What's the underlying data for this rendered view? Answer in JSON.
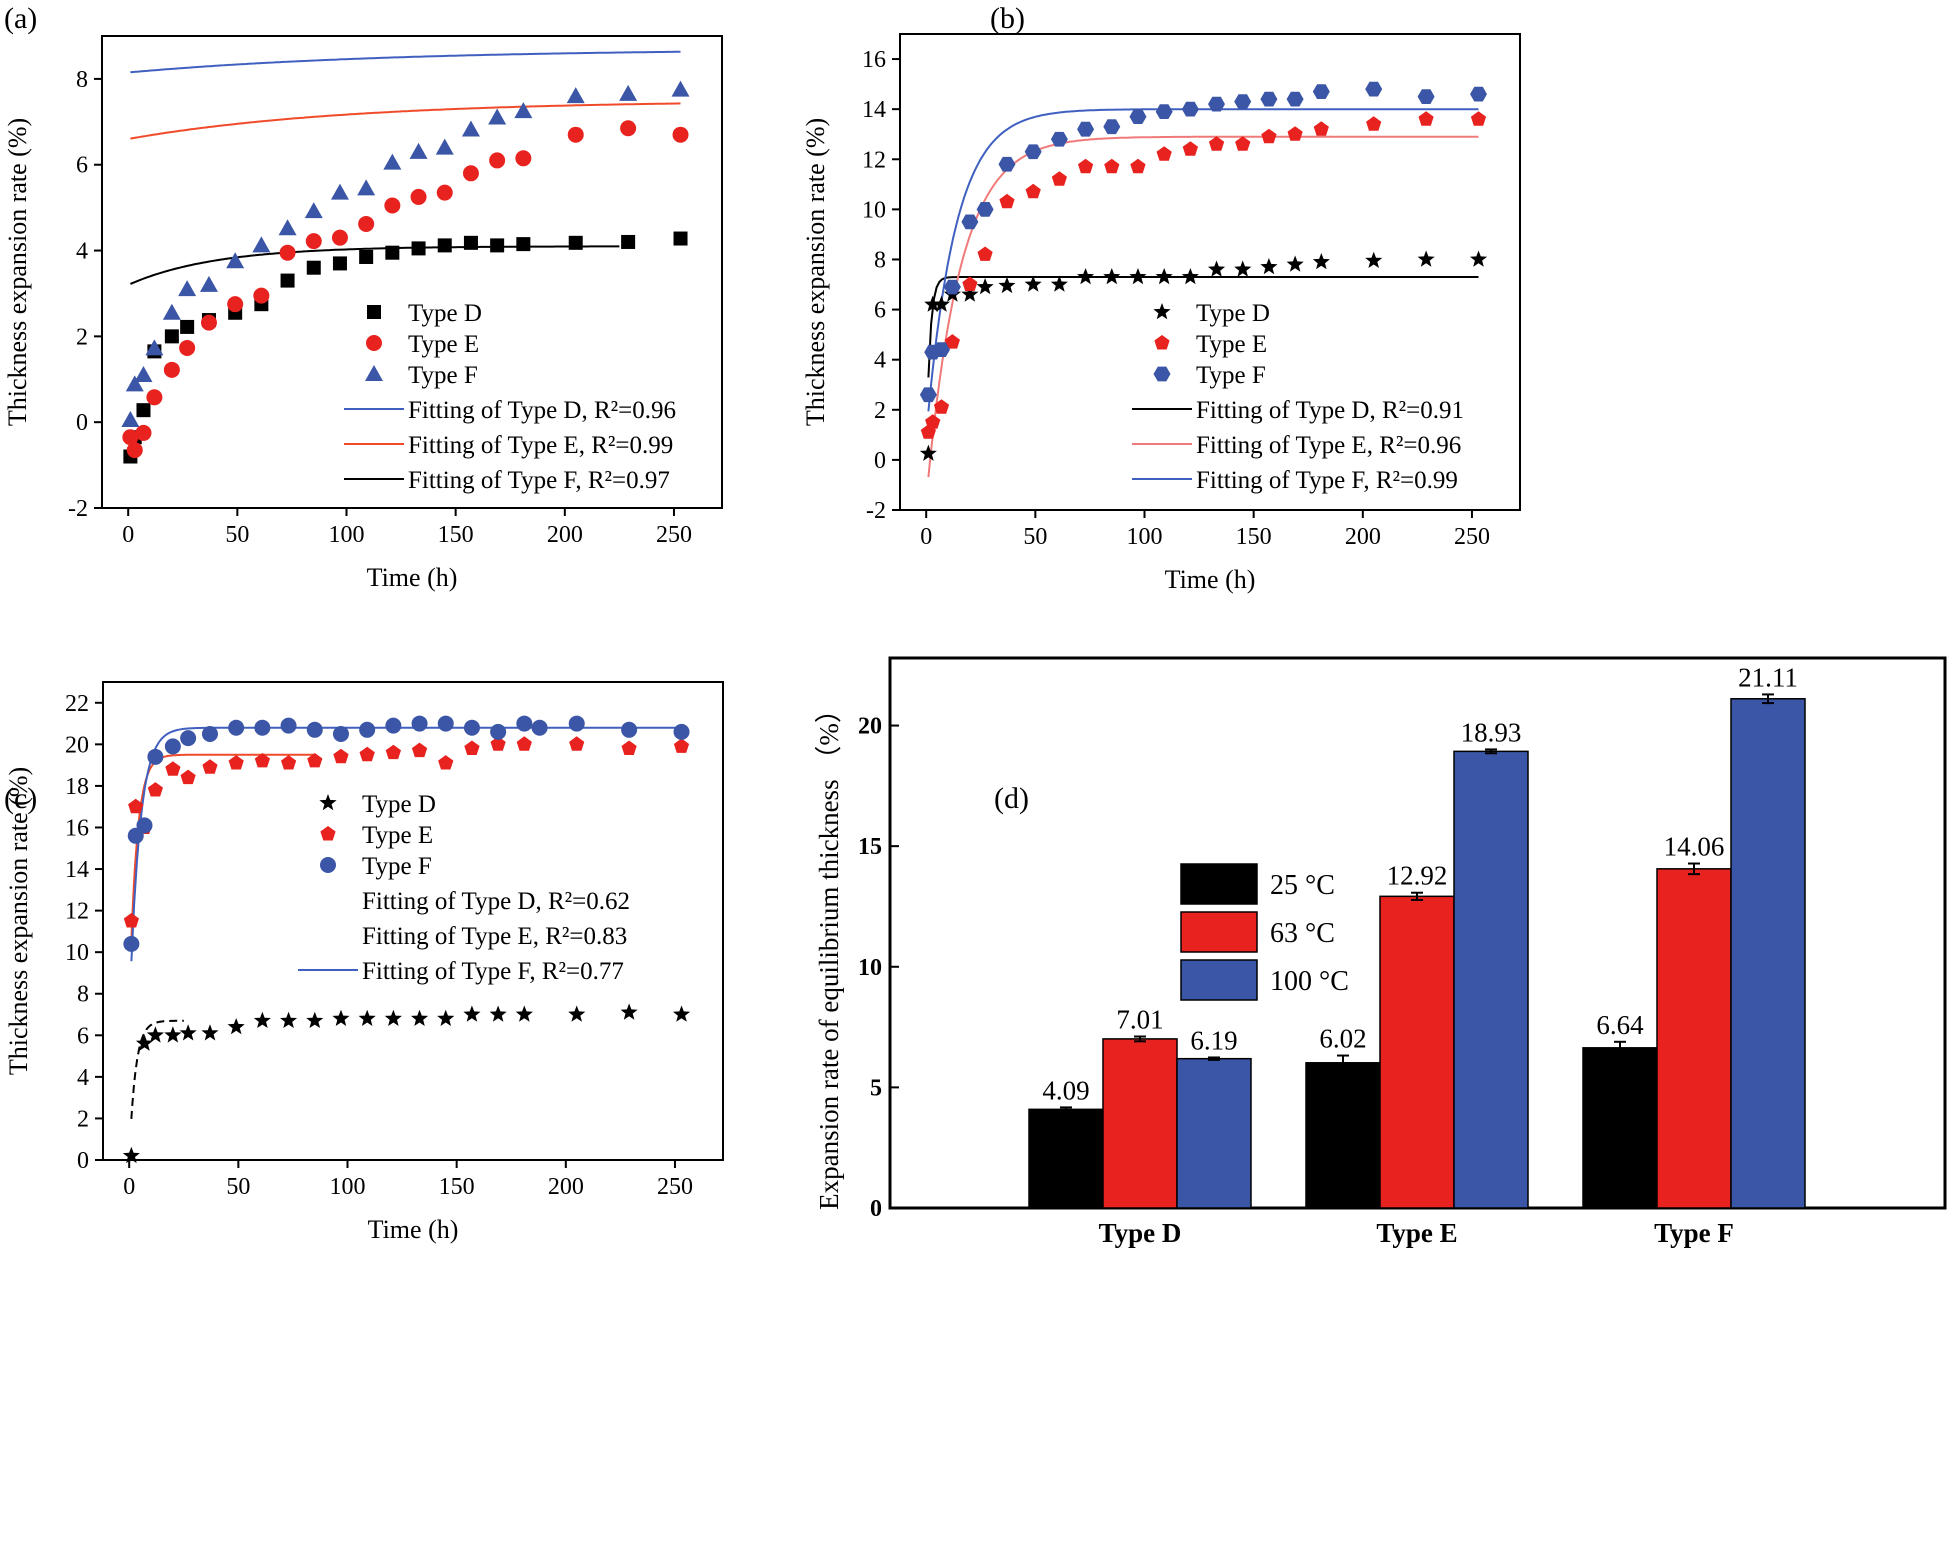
{
  "figure": {
    "panel_labels": [
      "(a)",
      "(b)",
      "(c)",
      "(d)"
    ]
  },
  "colors": {
    "black": "#000000",
    "red": "#e8221e",
    "blue": "#3b56a6",
    "fit_red": "#f04a2a",
    "fit_blue": "#4060c0"
  },
  "chart_data": [
    {
      "panel": "a",
      "type": "scatter",
      "xlabel": "Time (h)",
      "ylabel": "Thickness expansion rate (%)",
      "xlim": [
        -12,
        272
      ],
      "ylim": [
        -2,
        9
      ],
      "xticks": [
        0,
        50,
        100,
        150,
        200,
        250
      ],
      "yticks": [
        -2,
        0,
        2,
        4,
        6,
        8
      ],
      "series": [
        {
          "name": "Type D",
          "marker": "square",
          "color": "#000000",
          "x": [
            1,
            3,
            7,
            12,
            20,
            27,
            37,
            49,
            61,
            73,
            85,
            97,
            109,
            121,
            133,
            145,
            157,
            169,
            181,
            205,
            229,
            253
          ],
          "y": [
            -0.8,
            -0.35,
            0.28,
            1.65,
            2.0,
            2.22,
            2.38,
            2.55,
            2.75,
            3.3,
            3.6,
            3.7,
            3.85,
            3.95,
            4.05,
            4.12,
            4.18,
            4.12,
            4.15,
            4.18,
            4.2,
            4.28
          ]
        },
        {
          "name": "Type E",
          "marker": "circle",
          "color": "#e8221e",
          "x": [
            1,
            3,
            7,
            12,
            20,
            27,
            37,
            49,
            61,
            73,
            85,
            97,
            109,
            121,
            133,
            145,
            157,
            169,
            181,
            205,
            229,
            253
          ],
          "y": [
            -0.35,
            -0.65,
            -0.25,
            0.58,
            1.22,
            1.73,
            2.32,
            2.75,
            2.95,
            3.95,
            4.22,
            4.3,
            4.62,
            5.05,
            5.25,
            5.35,
            5.8,
            6.1,
            6.15,
            6.7,
            6.85,
            6.7
          ]
        },
        {
          "name": "Type F",
          "marker": "triangle",
          "color": "#3b56a6",
          "x": [
            1,
            3,
            7,
            12,
            20,
            27,
            37,
            49,
            61,
            73,
            85,
            97,
            109,
            121,
            133,
            145,
            157,
            169,
            181,
            205,
            229,
            253
          ],
          "y": [
            0.05,
            0.88,
            1.1,
            1.72,
            2.55,
            3.1,
            3.2,
            3.75,
            4.12,
            4.52,
            4.92,
            5.35,
            5.45,
            6.05,
            6.3,
            6.4,
            6.82,
            7.1,
            7.25,
            7.6,
            7.65,
            7.75
          ]
        }
      ],
      "fits": [
        {
          "label": "Fitting of Type D, R²=0.96",
          "color": "#4060c0",
          "fn": "exp",
          "a": 8.7,
          "b": -0.55,
          "k": 0.0083,
          "x0": 1,
          "x1": 253
        },
        {
          "label": "Fitting of Type E, R²=0.99",
          "color": "#f04a2a",
          "fn": "exp",
          "a": 7.5,
          "b": -0.9,
          "k": 0.01,
          "x0": 1,
          "x1": 253
        },
        {
          "label": "Fitting of Type F, R²=0.97",
          "color": "#000000",
          "fn": "exp",
          "a": 4.1,
          "b": -0.9,
          "k": 0.025,
          "x0": 1,
          "x1": 225
        }
      ],
      "legend": "center-right"
    },
    {
      "panel": "b",
      "type": "scatter",
      "xlabel": "Time (h)",
      "ylabel": "Thickness expansion rate (%)",
      "xlim": [
        -12,
        272
      ],
      "ylim": [
        -2,
        17
      ],
      "xticks": [
        0,
        50,
        100,
        150,
        200,
        250
      ],
      "yticks": [
        -2,
        0,
        2,
        4,
        6,
        8,
        10,
        12,
        14,
        16
      ],
      "series": [
        {
          "name": "Type D",
          "marker": "star",
          "color": "#000000",
          "x": [
            1,
            3,
            7,
            12,
            20,
            27,
            37,
            49,
            61,
            73,
            85,
            97,
            109,
            121,
            133,
            145,
            157,
            169,
            181,
            205,
            229,
            253
          ],
          "y": [
            0.25,
            6.2,
            6.2,
            6.6,
            6.6,
            6.9,
            6.95,
            7.0,
            7.0,
            7.3,
            7.3,
            7.3,
            7.3,
            7.3,
            7.6,
            7.6,
            7.7,
            7.8,
            7.9,
            7.95,
            8.0,
            8.0
          ]
        },
        {
          "name": "Type E",
          "marker": "pentagon",
          "color": "#e8221e",
          "x": [
            1,
            3,
            7,
            12,
            20,
            27,
            37,
            49,
            61,
            73,
            85,
            97,
            109,
            121,
            133,
            145,
            157,
            169,
            181,
            205,
            229,
            253
          ],
          "y": [
            1.1,
            1.5,
            2.1,
            4.7,
            7.0,
            8.2,
            10.3,
            10.7,
            11.2,
            11.7,
            11.7,
            11.7,
            12.2,
            12.4,
            12.6,
            12.6,
            12.9,
            13.0,
            13.2,
            13.4,
            13.6,
            13.6
          ]
        },
        {
          "name": "Type F",
          "marker": "hexagon",
          "color": "#3b56a6",
          "x": [
            1,
            3,
            7,
            12,
            20,
            27,
            37,
            49,
            61,
            73,
            85,
            97,
            109,
            121,
            133,
            145,
            157,
            169,
            181,
            205,
            229,
            253
          ],
          "y": [
            2.6,
            4.3,
            4.4,
            6.9,
            9.5,
            10.0,
            11.8,
            12.3,
            12.8,
            13.2,
            13.3,
            13.7,
            13.9,
            14.0,
            14.2,
            14.3,
            14.4,
            14.4,
            14.7,
            14.8,
            14.5,
            14.6
          ]
        }
      ],
      "fits": [
        {
          "label": "Fitting of Type D, R²=0.91",
          "color": "#000000",
          "fn": "exp",
          "a": 7.3,
          "b": -7.3,
          "k": 0.6,
          "x0": 1,
          "x1": 253
        },
        {
          "label": "Fitting of Type E, R²=0.96",
          "color": "#f07a7a",
          "fn": "exp",
          "a": 12.9,
          "b": -14.5,
          "k": 0.065,
          "x0": 1,
          "x1": 253
        },
        {
          "label": "Fitting of Type F, R²=0.99",
          "color": "#4060c0",
          "fn": "exp",
          "a": 14.0,
          "b": -13.0,
          "k": 0.075,
          "x0": 1,
          "x1": 253
        }
      ],
      "legend": "bottom-right"
    },
    {
      "panel": "c",
      "type": "scatter",
      "xlabel": "Time (h)",
      "ylabel": "Thickness expansion rate (%)",
      "xlim": [
        -12,
        272
      ],
      "ylim": [
        0,
        23
      ],
      "xticks": [
        0,
        50,
        100,
        150,
        200,
        250
      ],
      "yticks": [
        0,
        2,
        4,
        6,
        8,
        10,
        12,
        14,
        16,
        18,
        20,
        22
      ],
      "series": [
        {
          "name": "Type D",
          "marker": "star",
          "color": "#000000",
          "x": [
            1,
            7,
            12,
            20,
            27,
            37,
            49,
            61,
            73,
            85,
            97,
            109,
            121,
            133,
            145,
            157,
            169,
            181,
            205,
            229,
            253
          ],
          "y": [
            0.2,
            5.6,
            6.0,
            6.0,
            6.1,
            6.1,
            6.4,
            6.7,
            6.7,
            6.7,
            6.8,
            6.8,
            6.8,
            6.8,
            6.8,
            7.0,
            7.0,
            7.0,
            7.0,
            7.1,
            7.0
          ]
        },
        {
          "name": "Type E",
          "marker": "pentagon",
          "color": "#e8221e",
          "x": [
            1,
            3,
            7,
            12,
            20,
            27,
            37,
            49,
            61,
            73,
            85,
            97,
            109,
            121,
            133,
            145,
            157,
            169,
            181,
            205,
            229,
            253
          ],
          "y": [
            11.5,
            17.0,
            16.0,
            17.8,
            18.8,
            18.4,
            18.9,
            19.1,
            19.2,
            19.1,
            19.2,
            19.4,
            19.5,
            19.6,
            19.7,
            19.1,
            19.8,
            20.0,
            20.0,
            20.0,
            19.8,
            19.9
          ]
        },
        {
          "name": "Type F",
          "marker": "circle",
          "color": "#3b56a6",
          "x": [
            1,
            3,
            7,
            12,
            20,
            27,
            37,
            49,
            61,
            73,
            85,
            97,
            109,
            121,
            133,
            145,
            157,
            169,
            181,
            188,
            205,
            229,
            253
          ],
          "y": [
            10.4,
            15.6,
            16.1,
            19.4,
            19.9,
            20.3,
            20.5,
            20.8,
            20.8,
            20.9,
            20.7,
            20.5,
            20.7,
            20.9,
            21.0,
            21.0,
            20.8,
            20.6,
            21.0,
            20.8,
            21.0,
            20.7,
            20.6
          ]
        }
      ],
      "fits": [
        {
          "label": "Fitting of Type D, R²=0.62",
          "color": "#000000",
          "fn": "exp",
          "a": 6.7,
          "b": -6.7,
          "k": 0.35,
          "x0": 1,
          "x1": 25,
          "dash": "8,5"
        },
        {
          "label": "Fitting of Type E, R²=0.83",
          "color": "#f04a2a",
          "fn": "exp",
          "a": 19.5,
          "b": -12,
          "k": 0.3,
          "x0": 1,
          "x1": 85
        },
        {
          "label": "Fitting of Type F, R²=0.77",
          "color": "#4060c0",
          "fn": "exp",
          "a": 20.8,
          "b": -14,
          "k": 0.22,
          "x0": 1,
          "x1": 253
        }
      ],
      "legend": "center"
    },
    {
      "panel": "d",
      "type": "bar",
      "ylabel": "Expansion rate of equilibrium thickness （%）",
      "ylim": [
        0,
        22.8
      ],
      "yticks": [
        0,
        5,
        10,
        15,
        20
      ],
      "categories": [
        "Type D",
        "Type E",
        "Type F"
      ],
      "series": [
        {
          "name": "25 °C",
          "color": "#000000",
          "values": [
            4.09,
            6.02,
            6.64
          ],
          "errors": [
            0.08,
            0.3,
            0.25
          ],
          "labels": [
            "4.09",
            "6.02",
            "6.64"
          ]
        },
        {
          "name": "63 °C",
          "color": "#e8221e",
          "values": [
            7.01,
            12.92,
            14.06
          ],
          "errors": [
            0.1,
            0.15,
            0.22
          ],
          "labels": [
            "7.01",
            "12.92",
            "14.06"
          ]
        },
        {
          "name": "100 °C",
          "color": "#3b56a6",
          "values": [
            6.19,
            18.93,
            21.11
          ],
          "errors": [
            0.05,
            0.08,
            0.18
          ],
          "labels": [
            "6.19",
            "18.93",
            "21.11"
          ]
        }
      ],
      "legend": "top-left"
    }
  ]
}
